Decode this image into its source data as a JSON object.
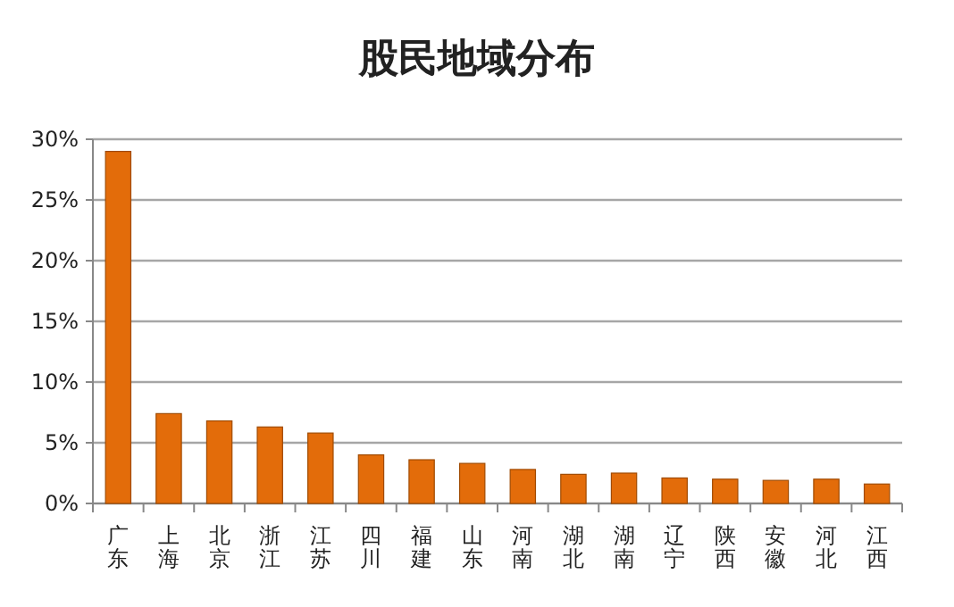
{
  "chart_data": {
    "type": "bar",
    "title": "股民地域分布",
    "categories": [
      "广东",
      "上海",
      "北京",
      "浙江",
      "江苏",
      "四川",
      "福建",
      "山东",
      "河南",
      "湖北",
      "湖南",
      "辽宁",
      "陕西",
      "安徽",
      "河北",
      "江西"
    ],
    "values": [
      29,
      7.4,
      6.8,
      6.3,
      5.8,
      4.0,
      3.6,
      3.3,
      2.8,
      2.4,
      2.5,
      2.1,
      2.0,
      1.9,
      2.0,
      1.6
    ],
    "color": "#e36c0a",
    "ylim": [
      0,
      30
    ],
    "yticks": [
      {
        "value": 0,
        "label": "0%"
      },
      {
        "value": 5,
        "label": "5%"
      },
      {
        "value": 10,
        "label": "10%"
      },
      {
        "value": 15,
        "label": "15%"
      },
      {
        "value": 20,
        "label": "20%"
      },
      {
        "value": 25,
        "label": "25%"
      },
      {
        "value": 30,
        "label": "30%"
      }
    ],
    "grid": "y"
  }
}
